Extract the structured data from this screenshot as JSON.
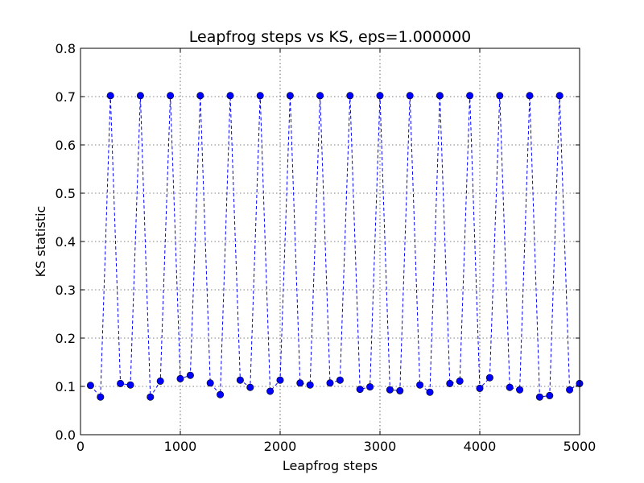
{
  "chart_data": {
    "type": "line",
    "title": "Leapfrog steps vs KS, eps=1.000000",
    "xlabel": "Leapfrog steps",
    "ylabel": "KS statistic",
    "xlim": [
      0,
      5000
    ],
    "ylim": [
      0.0,
      0.8
    ],
    "xticks": [
      "0",
      "1000",
      "2000",
      "3000",
      "4000",
      "5000"
    ],
    "yticks": [
      "0.0",
      "0.1",
      "0.2",
      "0.3",
      "0.4",
      "0.5",
      "0.6",
      "0.7",
      "0.8"
    ],
    "grid": true,
    "line_style": "dashed",
    "marker": "circle",
    "color": "#0000ff",
    "x": [
      100,
      200,
      300,
      400,
      500,
      600,
      700,
      800,
      900,
      1000,
      1100,
      1200,
      1300,
      1400,
      1500,
      1600,
      1700,
      1800,
      1900,
      2000,
      2100,
      2200,
      2300,
      2400,
      2500,
      2600,
      2700,
      2800,
      2900,
      3000,
      3100,
      3200,
      3300,
      3400,
      3500,
      3600,
      3700,
      3800,
      3900,
      4000,
      4100,
      4200,
      4300,
      4400,
      4500,
      4600,
      4700,
      4800,
      4900,
      5000
    ],
    "y": [
      0.102,
      0.078,
      0.702,
      0.106,
      0.103,
      0.702,
      0.078,
      0.111,
      0.702,
      0.116,
      0.123,
      0.702,
      0.107,
      0.083,
      0.702,
      0.113,
      0.098,
      0.702,
      0.09,
      0.113,
      0.702,
      0.107,
      0.103,
      0.702,
      0.107,
      0.113,
      0.702,
      0.094,
      0.099,
      0.702,
      0.093,
      0.091,
      0.702,
      0.103,
      0.088,
      0.702,
      0.106,
      0.111,
      0.702,
      0.096,
      0.118,
      0.702,
      0.098,
      0.093,
      0.702,
      0.078,
      0.081,
      0.702,
      0.093,
      0.106
    ]
  }
}
